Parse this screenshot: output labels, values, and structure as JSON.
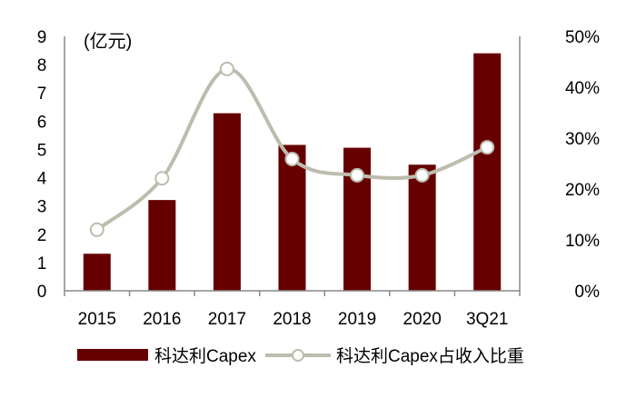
{
  "chart_data": {
    "type": "bar+line",
    "categories": [
      "2015",
      "2016",
      "2017",
      "2018",
      "2019",
      "2020",
      "3Q21"
    ],
    "unit_label": "(亿元)",
    "left_axis": {
      "ylim": [
        0,
        9
      ],
      "ticks": [
        "0",
        "1",
        "2",
        "3",
        "4",
        "5",
        "6",
        "7",
        "8",
        "9"
      ]
    },
    "right_axis": {
      "ylim": [
        0,
        50
      ],
      "ticks": [
        "0%",
        "10%",
        "20%",
        "30%",
        "40%",
        "50%"
      ]
    },
    "grid": false,
    "legend_placement": "bottom",
    "series": [
      {
        "name": "科达利Capex",
        "type": "bar",
        "axis": "left",
        "color": "#660000",
        "values": [
          1.31,
          3.21,
          6.28,
          5.16,
          5.06,
          4.46,
          8.4
        ]
      },
      {
        "name": "科达利Capex占收入比重",
        "type": "line",
        "axis": "right",
        "color": "#bdbcad",
        "smooth": true,
        "marker": "hollow-circle",
        "values": [
          12.0,
          22.1,
          43.6,
          25.9,
          22.7,
          22.7,
          28.2
        ]
      }
    ]
  }
}
